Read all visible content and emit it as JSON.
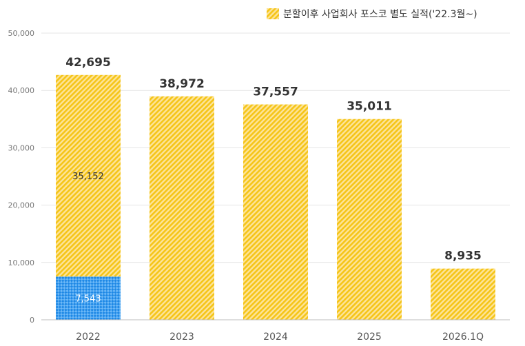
{
  "chart_data": {
    "type": "bar",
    "stacked": true,
    "categories": [
      "2022",
      "2023",
      "2024",
      "2025",
      "2026.1Q"
    ],
    "series": [
      {
        "values": [
          7543,
          null,
          null,
          null,
          null
        ],
        "data_labels": [
          "7,543",
          "",
          "",
          "",
          ""
        ],
        "color": "#1e88e5",
        "color2": "#6cb8f7",
        "pattern": "checkered"
      },
      {
        "name": "분할이후 사업회사 포스코 별도 실적('22.3월~)",
        "values": [
          35152,
          38972,
          37557,
          35011,
          8935
        ],
        "data_labels": [
          "35,152",
          "",
          "",
          "",
          ""
        ],
        "color": "#f5c518",
        "color2": "#fde8a0",
        "pattern": "diagonal-stripes"
      }
    ],
    "totals": [
      42695,
      38972,
      37557,
      35011,
      8935
    ],
    "total_labels": [
      "42,695",
      "38,972",
      "37,557",
      "35,011",
      "8,935"
    ],
    "yticks": [
      0,
      10000,
      20000,
      30000,
      40000,
      50000
    ],
    "ytick_labels": [
      "0",
      "10,000",
      "20,000",
      "30,000",
      "40,000",
      "50,000"
    ],
    "ylim": [
      0,
      50000
    ],
    "grid": true,
    "legend_position": "top-right",
    "title": "",
    "xlabel": "",
    "ylabel": ""
  }
}
